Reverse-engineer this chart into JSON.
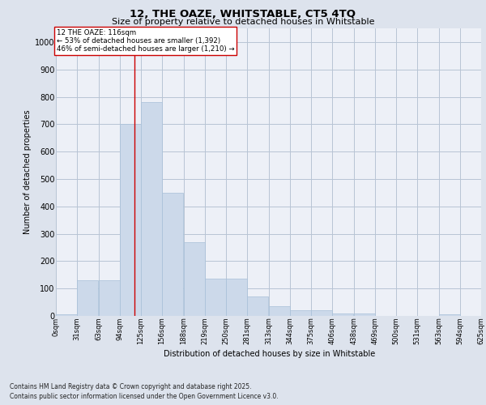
{
  "title_line1": "12, THE OAZE, WHITSTABLE, CT5 4TQ",
  "title_line2": "Size of property relative to detached houses in Whitstable",
  "xlabel": "Distribution of detached houses by size in Whitstable",
  "ylabel": "Number of detached properties",
  "bar_color": "#ccd9ea",
  "bar_edge_color": "#a8c0d8",
  "background_color": "#dde3ed",
  "plot_bg_color": "#edf0f7",
  "grid_color": "#b8c4d4",
  "bin_labels": [
    "0sqm",
    "31sqm",
    "63sqm",
    "94sqm",
    "125sqm",
    "156sqm",
    "188sqm",
    "219sqm",
    "250sqm",
    "281sqm",
    "313sqm",
    "344sqm",
    "375sqm",
    "406sqm",
    "438sqm",
    "469sqm",
    "500sqm",
    "531sqm",
    "563sqm",
    "594sqm",
    "625sqm"
  ],
  "bin_edges": [
    0,
    31,
    63,
    94,
    125,
    156,
    188,
    219,
    250,
    281,
    313,
    344,
    375,
    406,
    438,
    469,
    500,
    531,
    563,
    594,
    625
  ],
  "bar_heights": [
    5,
    130,
    130,
    700,
    780,
    450,
    270,
    135,
    135,
    70,
    35,
    22,
    22,
    10,
    10,
    0,
    0,
    0,
    5,
    0,
    0
  ],
  "ylim": [
    0,
    1050
  ],
  "yticks": [
    0,
    100,
    200,
    300,
    400,
    500,
    600,
    700,
    800,
    900,
    1000
  ],
  "property_size": 116,
  "property_label": "12 THE OAZE: 116sqm",
  "annotation_line1": "← 53% of detached houses are smaller (1,392)",
  "annotation_line2": "46% of semi-detached houses are larger (1,210) →",
  "vline_color": "#cc0000",
  "annotation_box_color": "#ffffff",
  "annotation_box_edge": "#cc0000",
  "footnote1": "Contains HM Land Registry data © Crown copyright and database right 2025.",
  "footnote2": "Contains public sector information licensed under the Open Government Licence v3.0."
}
